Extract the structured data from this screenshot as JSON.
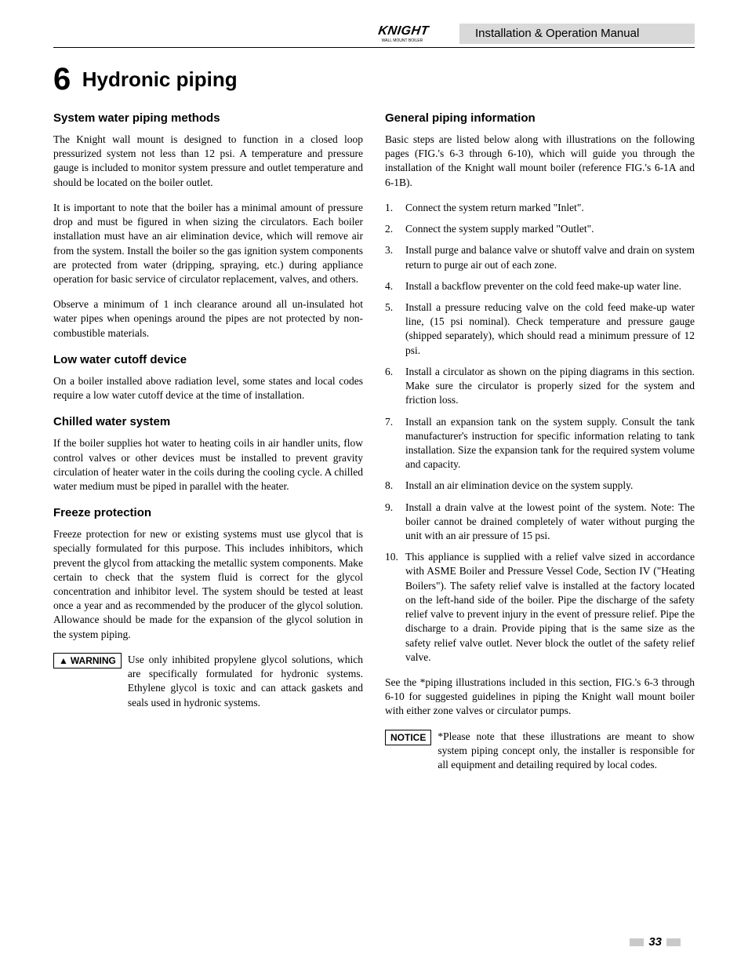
{
  "header": {
    "brand": "KNIGHT",
    "brand_sub": "WALL MOUNT BOILER",
    "doc_title": "Installation & Operation Manual"
  },
  "section": {
    "number": "6",
    "title": "Hydronic piping"
  },
  "left": {
    "h_system": "System water piping methods",
    "p_system_1": "The Knight wall mount is designed to function in a closed loop pressurized system not less than 12 psi.  A temperature and pressure gauge is included to monitor system pressure and outlet temperature and should be located on the boiler outlet.",
    "p_system_2": "It is important to note that the boiler has a minimal amount of pressure drop and must be figured in when sizing the circulators.  Each boiler installation must have an air elimination device, which will remove air from the system.  Install the boiler so the gas ignition system components are protected from water (dripping, spraying, etc.) during appliance operation for basic service of circulator replacement, valves, and others.",
    "p_system_3": "Observe a minimum of 1 inch clearance around all un-insulated hot water pipes when openings around the pipes are not protected by non-combustible materials.",
    "h_lowwater": "Low water cutoff device",
    "p_lowwater": "On a boiler installed above radiation level, some states and local codes require a low water cutoff device at the time of installation.",
    "h_chilled": "Chilled water system",
    "p_chilled": "If the boiler supplies hot water to heating coils in air handler units, flow control valves or other devices must be installed to prevent gravity circulation of heater water in the coils during the cooling cycle.  A chilled water medium must be piped in parallel with the heater.",
    "h_freeze": "Freeze protection",
    "p_freeze": "Freeze protection for new or existing systems must use glycol that is specially formulated for this purpose.  This includes inhibitors, which prevent the glycol from attacking the metallic system components.  Make certain to check that the system fluid is correct for the glycol concentration and inhibitor level.  The system should be tested at least once a year and as recommended by the producer of the glycol solution.  Allowance should be made for the expansion of the glycol solution in the system piping.",
    "warning_label": "WARNING",
    "warning_text": "Use only inhibited propylene glycol solutions, which are specifically formulated for hydronic systems. Ethylene glycol is toxic and can attack gaskets and seals used in hydronic systems."
  },
  "right": {
    "h_general": "General piping information",
    "p_general": "Basic steps are listed below along with illustrations on the following pages (FIG.'s 6-3 through 6-10), which will guide you through the installation of the Knight wall mount boiler (reference   FIG.'s 6-1A and 6-1B).",
    "steps": [
      "Connect the system return marked \"Inlet\".",
      "Connect the system supply marked \"Outlet\".",
      "Install purge and balance valve or shutoff valve and drain on system return to purge air out of each zone.",
      "Install a backflow preventer on the cold feed make-up water line.",
      "Install a pressure reducing valve on the cold feed make-up water line, (15 psi nominal).  Check temperature and pressure gauge (shipped separately), which should read a minimum pressure of 12 psi.",
      "Install a circulator as shown on the piping diagrams in this section.  Make sure the circulator is properly sized for the system and friction loss.",
      "Install an expansion tank on the system supply.  Consult the tank manufacturer's instruction for specific information relating to tank installation.  Size the expansion tank for the required system volume and capacity.",
      "Install an air elimination device on the system supply.",
      "Install a drain valve at the lowest point of the system.  Note: The boiler cannot be drained completely of water without purging the unit with an air pressure of 15 psi.",
      "This appliance is supplied with a relief valve sized in accordance with ASME Boiler and Pressure Vessel Code, Section IV (\"Heating Boilers\").  The safety relief valve is installed at the factory located on the left-hand side of the boiler.  Pipe the discharge of the safety relief valve to prevent injury in the event of pressure relief.  Pipe the discharge to a drain.  Provide piping that is the same size as the safety relief valve outlet.  Never block the outlet of the safety relief valve."
    ],
    "p_see": "See the *piping illustrations included in this section, FIG.'s 6-3 through 6-10 for suggested guidelines in piping the Knight wall mount boiler with either zone valves or circulator pumps.",
    "notice_label": "NOTICE",
    "notice_text": "*Please note that these illustrations are meant to show system piping concept only, the installer is responsible for all equipment and detailing required by local codes."
  },
  "page_number": "33"
}
